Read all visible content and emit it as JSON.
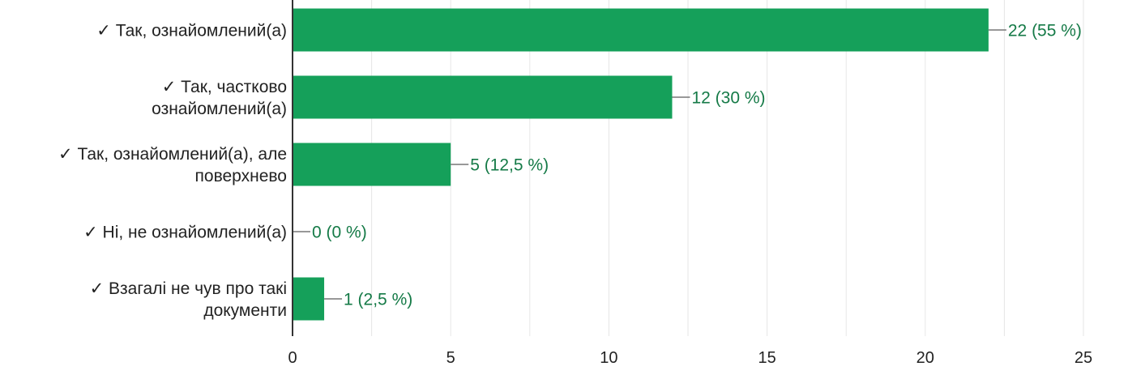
{
  "chart_data": {
    "type": "bar",
    "orientation": "horizontal",
    "categories": [
      [
        "✓ Так, ознайомлений(а)"
      ],
      [
        "✓ Так, частково",
        "ознайомлений(а)"
      ],
      [
        "✓ Так, ознайомлений(а), але",
        "поверхнево"
      ],
      [
        "✓ Ні, не ознайомлений(а)"
      ],
      [
        "✓ Взагалі не чув про такі",
        "документи"
      ]
    ],
    "values": [
      22,
      12,
      5,
      0,
      1
    ],
    "data_labels": [
      "22 (55 %)",
      "12 (30 %)",
      "5 (12,5 %)",
      "0 (0 %)",
      "1 (2,5 %)"
    ],
    "xlim": [
      0,
      25
    ],
    "xticks": [
      0,
      5,
      10,
      15,
      20,
      25
    ],
    "grid": true,
    "colors": {
      "bar": "#15a05a",
      "label": "#157a47",
      "grid": "#e6e6e6",
      "axis": "#333333",
      "leader": "#777777"
    }
  }
}
